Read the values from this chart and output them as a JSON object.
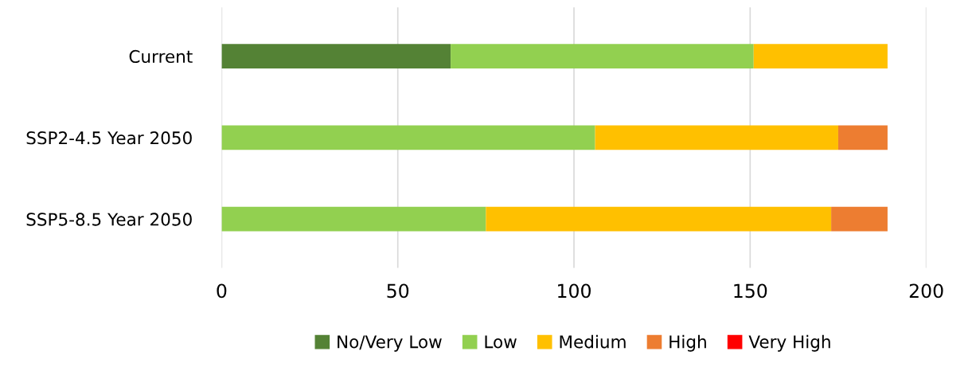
{
  "chart_data": {
    "type": "bar",
    "orientation": "horizontal",
    "stacked": true,
    "categories": [
      "Current",
      "SSP2-4.5 Year 2050",
      "SSP5-8.5 Year 2050"
    ],
    "series": [
      {
        "name": "No/Very Low",
        "color": "#548235",
        "values": [
          65,
          0,
          0
        ]
      },
      {
        "name": "Low",
        "color": "#92d050",
        "values": [
          86,
          106,
          75
        ]
      },
      {
        "name": "Medium",
        "color": "#ffc000",
        "values": [
          38,
          69,
          98
        ]
      },
      {
        "name": "High",
        "color": "#ed7d31",
        "values": [
          0,
          14,
          16
        ]
      },
      {
        "name": "Very High",
        "color": "#ff0000",
        "values": [
          0,
          0,
          0
        ]
      }
    ],
    "xlim": [
      0,
      200
    ],
    "xticks": [
      0,
      50,
      100,
      150,
      200
    ],
    "grid": "x",
    "legend": "bottom"
  }
}
